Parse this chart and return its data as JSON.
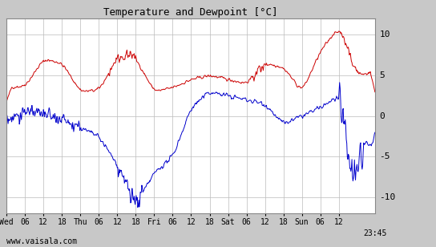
{
  "title": "Temperature and Dewpoint [°C]",
  "background_color": "#c8c8c8",
  "plot_bg_color": "#ffffff",
  "grid_color": "#bbbbbb",
  "temp_color": "#cc0000",
  "dew_color": "#0000cc",
  "ylim": [
    -12,
    12
  ],
  "yticks": [
    -10,
    -5,
    0,
    5,
    10
  ],
  "footer": "www.vaisala.com",
  "line_width": 0.7,
  "total_hours": 119.75,
  "xtick_positions": [
    0,
    6,
    12,
    18,
    24,
    30,
    36,
    42,
    48,
    54,
    60,
    66,
    72,
    78,
    84,
    90,
    96,
    102,
    108,
    119.75
  ],
  "xtick_labels": [
    "Wed",
    "06",
    "12",
    "18",
    "Thu",
    "06",
    "12",
    "18",
    "Fri",
    "06",
    "12",
    "18",
    "Sat",
    "06",
    "12",
    "18",
    "Sun",
    "06",
    "12",
    "23:45"
  ]
}
